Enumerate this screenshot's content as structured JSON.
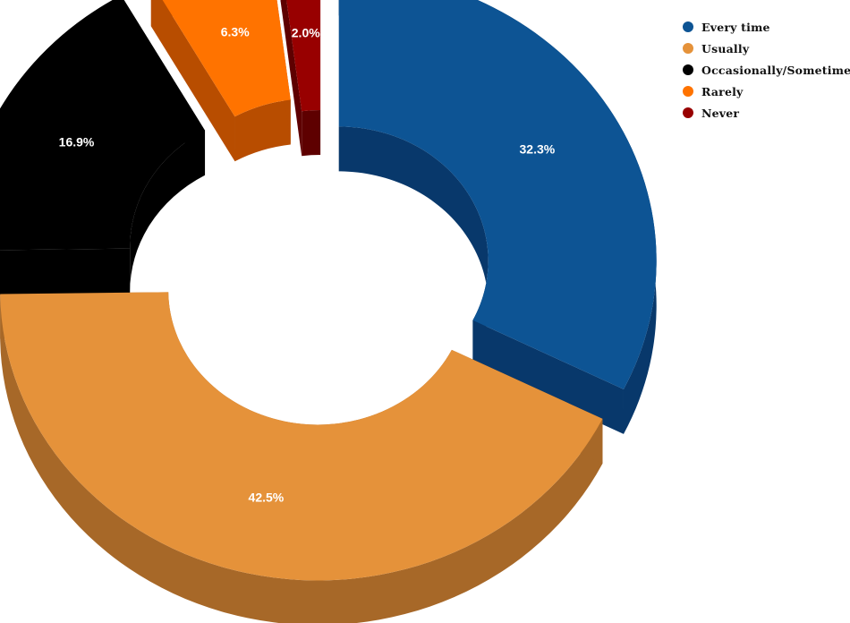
{
  "chart_data": {
    "type": "pie",
    "variant": "exploded 3d donut",
    "title": "",
    "legend_position": "top-right",
    "slices": [
      {
        "label": "Every time",
        "value": 32.3,
        "display": "32.3%",
        "color": "#0d5494",
        "side_color": "#08386b"
      },
      {
        "label": "Usually",
        "value": 42.5,
        "display": "42.5%",
        "color": "#e5923a",
        "side_color": "#a76828"
      },
      {
        "label": "Occasionally/Sometimes",
        "value": 16.9,
        "display": "16.9%",
        "color": "#000000",
        "side_color": "#000000"
      },
      {
        "label": "Rarely",
        "value": 6.3,
        "display": "6.3%",
        "color": "#ff7300",
        "side_color": "#b84d00"
      },
      {
        "label": "Never",
        "value": 2.0,
        "display": "2.0%",
        "color": "#980000",
        "side_color": "#5e0000"
      }
    ]
  }
}
